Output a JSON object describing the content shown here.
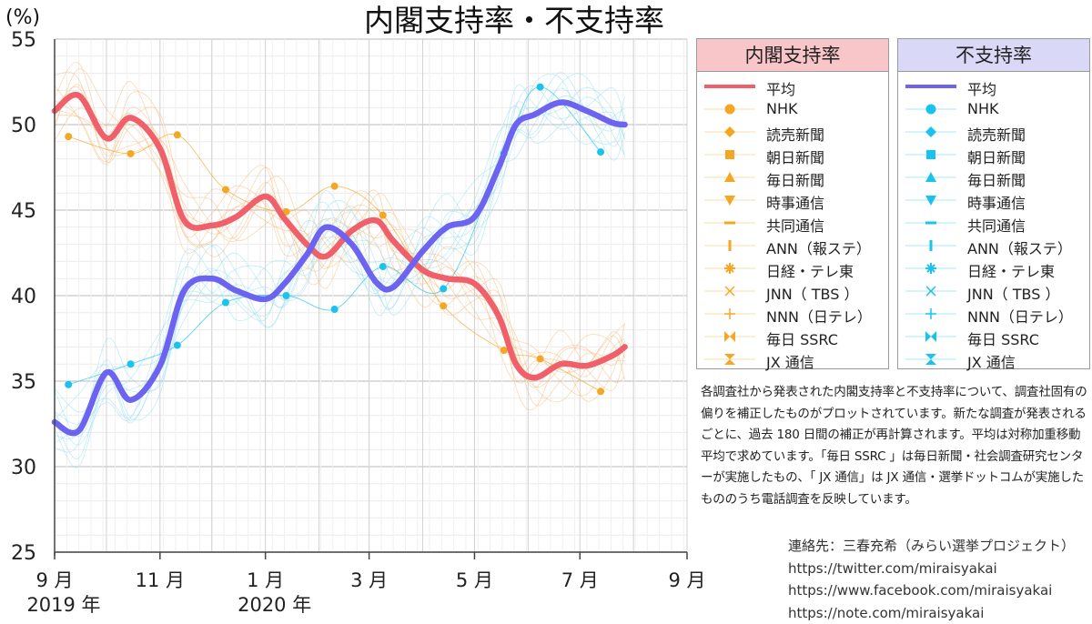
{
  "chart_data": {
    "type": "line",
    "title": "内閣支持率・不支持率",
    "ylabel": "(%)",
    "ylim": [
      25,
      55
    ],
    "yticks": [
      "25",
      "30",
      "35",
      "40",
      "45",
      "50",
      "55"
    ],
    "xlim": [
      "2019-09-01",
      "2020-09-01"
    ],
    "xticks": [
      {
        "date": "2019-09-01",
        "label": "9 月",
        "year": "2019 年"
      },
      {
        "date": "2019-11-01",
        "label": "11 月",
        "year": ""
      },
      {
        "date": "2020-01-01",
        "label": "1 月",
        "year": "2020 年"
      },
      {
        "date": "2020-03-01",
        "label": "3 月",
        "year": ""
      },
      {
        "date": "2020-05-01",
        "label": "5 月",
        "year": ""
      },
      {
        "date": "2020-07-01",
        "label": "7 月",
        "year": ""
      },
      {
        "date": "2020-09-01",
        "label": "9 月",
        "year": ""
      }
    ],
    "grid": true,
    "legend_position": "right",
    "colors": {
      "approve_avg": "#f0606a",
      "disapprove_avg": "#6c63f0",
      "approve_points": "#f5a623",
      "disapprove_points": "#19c3ee"
    },
    "series": [
      {
        "name": "平均",
        "group": "内閣支持率",
        "x": [
          "2019-09-01",
          "2019-09-15",
          "2019-10-01",
          "2019-10-15",
          "2019-11-01",
          "2019-11-15",
          "2019-12-01",
          "2019-12-15",
          "2020-01-01",
          "2020-01-12",
          "2020-01-25",
          "2020-02-05",
          "2020-02-20",
          "2020-03-05",
          "2020-03-15",
          "2020-04-01",
          "2020-04-15",
          "2020-05-01",
          "2020-05-15",
          "2020-05-25",
          "2020-06-05",
          "2020-06-20",
          "2020-07-05",
          "2020-07-20",
          "2020-07-27"
        ],
        "values": [
          50.8,
          51.7,
          49.2,
          50.4,
          48.6,
          44.4,
          44.1,
          44.6,
          45.8,
          44.5,
          43.0,
          42.3,
          43.8,
          44.4,
          43.2,
          41.5,
          41.0,
          40.7,
          38.8,
          36.0,
          35.2,
          36.0,
          35.9,
          36.5,
          37.0
        ]
      },
      {
        "name": "平均",
        "group": "不支持率",
        "x": [
          "2019-09-01",
          "2019-09-15",
          "2019-10-01",
          "2019-10-15",
          "2019-11-01",
          "2019-11-15",
          "2019-12-01",
          "2019-12-15",
          "2020-01-01",
          "2020-01-12",
          "2020-01-25",
          "2020-02-05",
          "2020-02-20",
          "2020-03-05",
          "2020-03-15",
          "2020-04-01",
          "2020-04-15",
          "2020-05-01",
          "2020-05-15",
          "2020-05-25",
          "2020-06-05",
          "2020-06-20",
          "2020-07-05",
          "2020-07-20",
          "2020-07-27"
        ],
        "values": [
          32.6,
          32.1,
          35.5,
          33.9,
          35.9,
          40.3,
          41.0,
          40.3,
          39.8,
          40.7,
          42.4,
          44.0,
          43.0,
          40.8,
          40.5,
          42.6,
          44.0,
          44.6,
          47.5,
          50.0,
          50.6,
          51.3,
          50.8,
          50.1,
          50.0
        ]
      },
      {
        "name": "NHK",
        "group": "内閣支持率",
        "x": [
          "2019-09-09",
          "2019-10-15",
          "2019-11-11",
          "2019-12-09",
          "2020-01-13",
          "2020-02-10",
          "2020-03-09",
          "2020-04-13",
          "2020-05-18",
          "2020-06-08",
          "2020-07-13"
        ],
        "values": [
          49.3,
          48.3,
          49.4,
          46.2,
          44.9,
          46.4,
          44.7,
          39.4,
          36.8,
          36.3,
          34.4
        ]
      },
      {
        "name": "NHK",
        "group": "不支持率",
        "x": [
          "2019-09-09",
          "2019-10-15",
          "2019-11-11",
          "2019-12-09",
          "2020-01-13",
          "2020-02-10",
          "2020-03-09",
          "2020-04-13",
          "2020-05-18",
          "2020-06-08",
          "2020-07-13"
        ],
        "values": [
          34.8,
          36.0,
          37.1,
          39.6,
          40.0,
          39.2,
          41.7,
          40.4,
          48.3,
          52.2,
          48.4
        ]
      }
    ]
  },
  "legend_approve": {
    "header": "内閣支持率",
    "items": [
      "平均",
      "NHK",
      "読売新聞",
      "朝日新聞",
      "毎日新聞",
      "時事通信",
      "共同通信",
      "ANN（報ステ）",
      "日経・テレ東",
      "JNN（ TBS ）",
      "NNN（日テレ）",
      "毎日 SSRC",
      "JX 通信"
    ]
  },
  "legend_disapprove": {
    "header": "不支持率",
    "items": [
      "平均",
      "NHK",
      "読売新聞",
      "朝日新聞",
      "毎日新聞",
      "時事通信",
      "共同通信",
      "ANN（報ステ）",
      "日経・テレ東",
      "JNN（ TBS ）",
      "NNN（日テレ）",
      "毎日 SSRC",
      "JX 通信"
    ]
  },
  "note": "各調査社から発表された内閣支持率と不支持率について、調査社固有の偏りを補正したものがプロットされています。新たな調査が発表されるごとに、過去 180 日間の補正が再計算されます。平均は対称加重移動平均で求めています。「毎日 SSRC 」は毎日新聞・社会調査研究センターが実施したもの、「 JX 通信」は JX 通信・選挙ドットコムが実施したもののうち電話調査を反映しています。",
  "contacts": [
    "連絡先：三春充希（みらい選挙プロジェクト）",
    "https://twitter.com/miraisyakai",
    "https://www.facebook.com/miraisyakai",
    "https://note.com/miraisyakai"
  ]
}
